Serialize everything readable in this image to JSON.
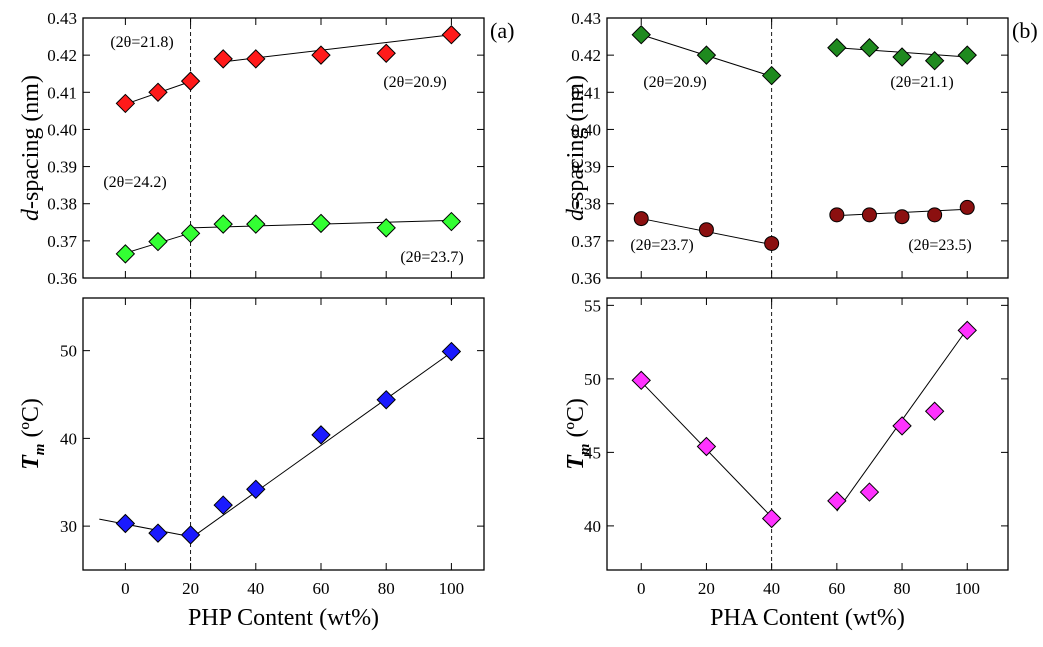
{
  "chart_data": [
    {
      "type": "scatter",
      "panel_label": "(a)",
      "ylabel": [
        "d",
        "-spacing (nm)"
      ],
      "xlim": [
        -13,
        110
      ],
      "xticks": [
        0,
        20,
        40,
        60,
        80,
        100
      ],
      "show_xtick_labels": false,
      "ylim": [
        0.36,
        0.43
      ],
      "yticks": [
        0.36,
        0.37,
        0.38,
        0.39,
        {
          "value": 0.4,
          "label": "0.40"
        },
        0.41,
        0.42,
        0.43
      ],
      "vline": 20,
      "grid": false,
      "x": [
        0,
        10,
        20,
        30,
        40,
        60,
        80,
        100
      ],
      "series": [
        {
          "color": "#ff1a1a",
          "marker": "diamond",
          "values": [
            0.407,
            0.41,
            0.413,
            0.419,
            0.419,
            0.42,
            0.4205,
            0.4255
          ]
        },
        {
          "color": "#33ff33",
          "marker": "diamond",
          "values": [
            0.3665,
            0.3698,
            0.372,
            0.3745,
            0.3745,
            0.3747,
            0.3735,
            0.3752
          ]
        }
      ],
      "fit_lines": [
        {
          "x": [
            0,
            20
          ],
          "y": [
            0.4068,
            0.4129
          ]
        },
        {
          "x": [
            30,
            100
          ],
          "y": [
            0.4182,
            0.4255
          ]
        },
        {
          "x": [
            0,
            20
          ],
          "y": [
            0.3667,
            0.3721
          ]
        },
        {
          "x": [
            20,
            100
          ],
          "y": [
            0.3735,
            0.3755
          ]
        }
      ],
      "annotations": [
        "(2θ=21.8)",
        "(2θ=24.2)",
        "(2θ=20.9)",
        "(2θ=23.7)"
      ]
    },
    {
      "type": "scatter",
      "ylabel": [
        "T",
        "m",
        " (ºC)"
      ],
      "xlabel": "PHP Content (wt%)",
      "xlim": [
        -13,
        110
      ],
      "xticks": [
        0,
        20,
        40,
        60,
        80,
        100
      ],
      "show_xtick_labels": true,
      "ylim": [
        25,
        56
      ],
      "yticks": [
        30,
        40,
        50
      ],
      "vline": 20,
      "grid": false,
      "x": [
        0,
        10,
        20,
        30,
        40,
        60,
        80,
        100
      ],
      "series": [
        {
          "color": "#1a1aff",
          "marker": "diamond",
          "values": [
            30.3,
            29.2,
            29.0,
            32.4,
            34.2,
            40.4,
            44.4,
            49.9
          ]
        }
      ],
      "fit_lines": [
        {
          "x": [
            -8,
            20
          ],
          "y": [
            30.8,
            28.8
          ]
        },
        {
          "x": [
            20,
            100
          ],
          "y": [
            28.6,
            49.8
          ]
        }
      ]
    },
    {
      "type": "scatter",
      "panel_label": "(b)",
      "ylabel": [
        "d",
        "-spacing (nm)"
      ],
      "xlim": [
        -10.5,
        112.5
      ],
      "xticks": [
        0,
        20,
        40,
        60,
        80,
        100
      ],
      "show_xtick_labels": false,
      "ylim": [
        0.36,
        0.43
      ],
      "yticks": [
        0.36,
        0.37,
        0.38,
        0.39,
        {
          "value": 0.4,
          "label": "0.40"
        },
        0.41,
        0.42,
        0.43
      ],
      "vline": 40,
      "grid": false,
      "x": [
        0,
        20,
        40,
        60,
        70,
        80,
        90,
        100
      ],
      "series": [
        {
          "color": "#1f8a1f",
          "marker": "diamond",
          "values": [
            0.4255,
            0.42,
            0.4145,
            0.422,
            0.422,
            0.4195,
            0.4185,
            0.42
          ]
        },
        {
          "color": "#8b1010",
          "marker": "circle",
          "values": [
            0.376,
            0.373,
            0.3693,
            0.377,
            0.377,
            0.3765,
            0.377,
            0.379
          ]
        }
      ],
      "fit_lines": [
        {
          "x": [
            0,
            40
          ],
          "y": [
            0.4255,
            0.4143
          ]
        },
        {
          "x": [
            60,
            100
          ],
          "y": [
            0.422,
            0.4195
          ]
        },
        {
          "x": [
            0,
            40
          ],
          "y": [
            0.376,
            0.369
          ]
        },
        {
          "x": [
            60,
            100
          ],
          "y": [
            0.3768,
            0.3785
          ]
        }
      ],
      "annotations": [
        "(2θ=20.9)",
        "(2θ=21.1)",
        "(2θ=23.7)",
        "(2θ=23.5)"
      ]
    },
    {
      "type": "scatter",
      "ylabel": [
        "T",
        "m",
        " (ºC)"
      ],
      "xlabel": "PHA Content (wt%)",
      "xlim": [
        -10.5,
        112.5
      ],
      "xticks": [
        0,
        20,
        40,
        60,
        80,
        100
      ],
      "show_xtick_labels": true,
      "ylim": [
        37,
        55.5
      ],
      "yticks": [
        40,
        45,
        50,
        55
      ],
      "vline": 40,
      "grid": false,
      "x": [
        0,
        20,
        40,
        60,
        70,
        80,
        90,
        100
      ],
      "series": [
        {
          "color": "#ff33ff",
          "marker": "diamond",
          "values": [
            49.9,
            45.4,
            40.5,
            41.7,
            42.3,
            46.8,
            47.8,
            53.3
          ]
        }
      ],
      "fit_lines": [
        {
          "x": [
            0,
            40
          ],
          "y": [
            49.8,
            40.6
          ]
        },
        {
          "x": [
            60,
            100
          ],
          "y": [
            41.0,
            53.4
          ]
        }
      ]
    }
  ]
}
